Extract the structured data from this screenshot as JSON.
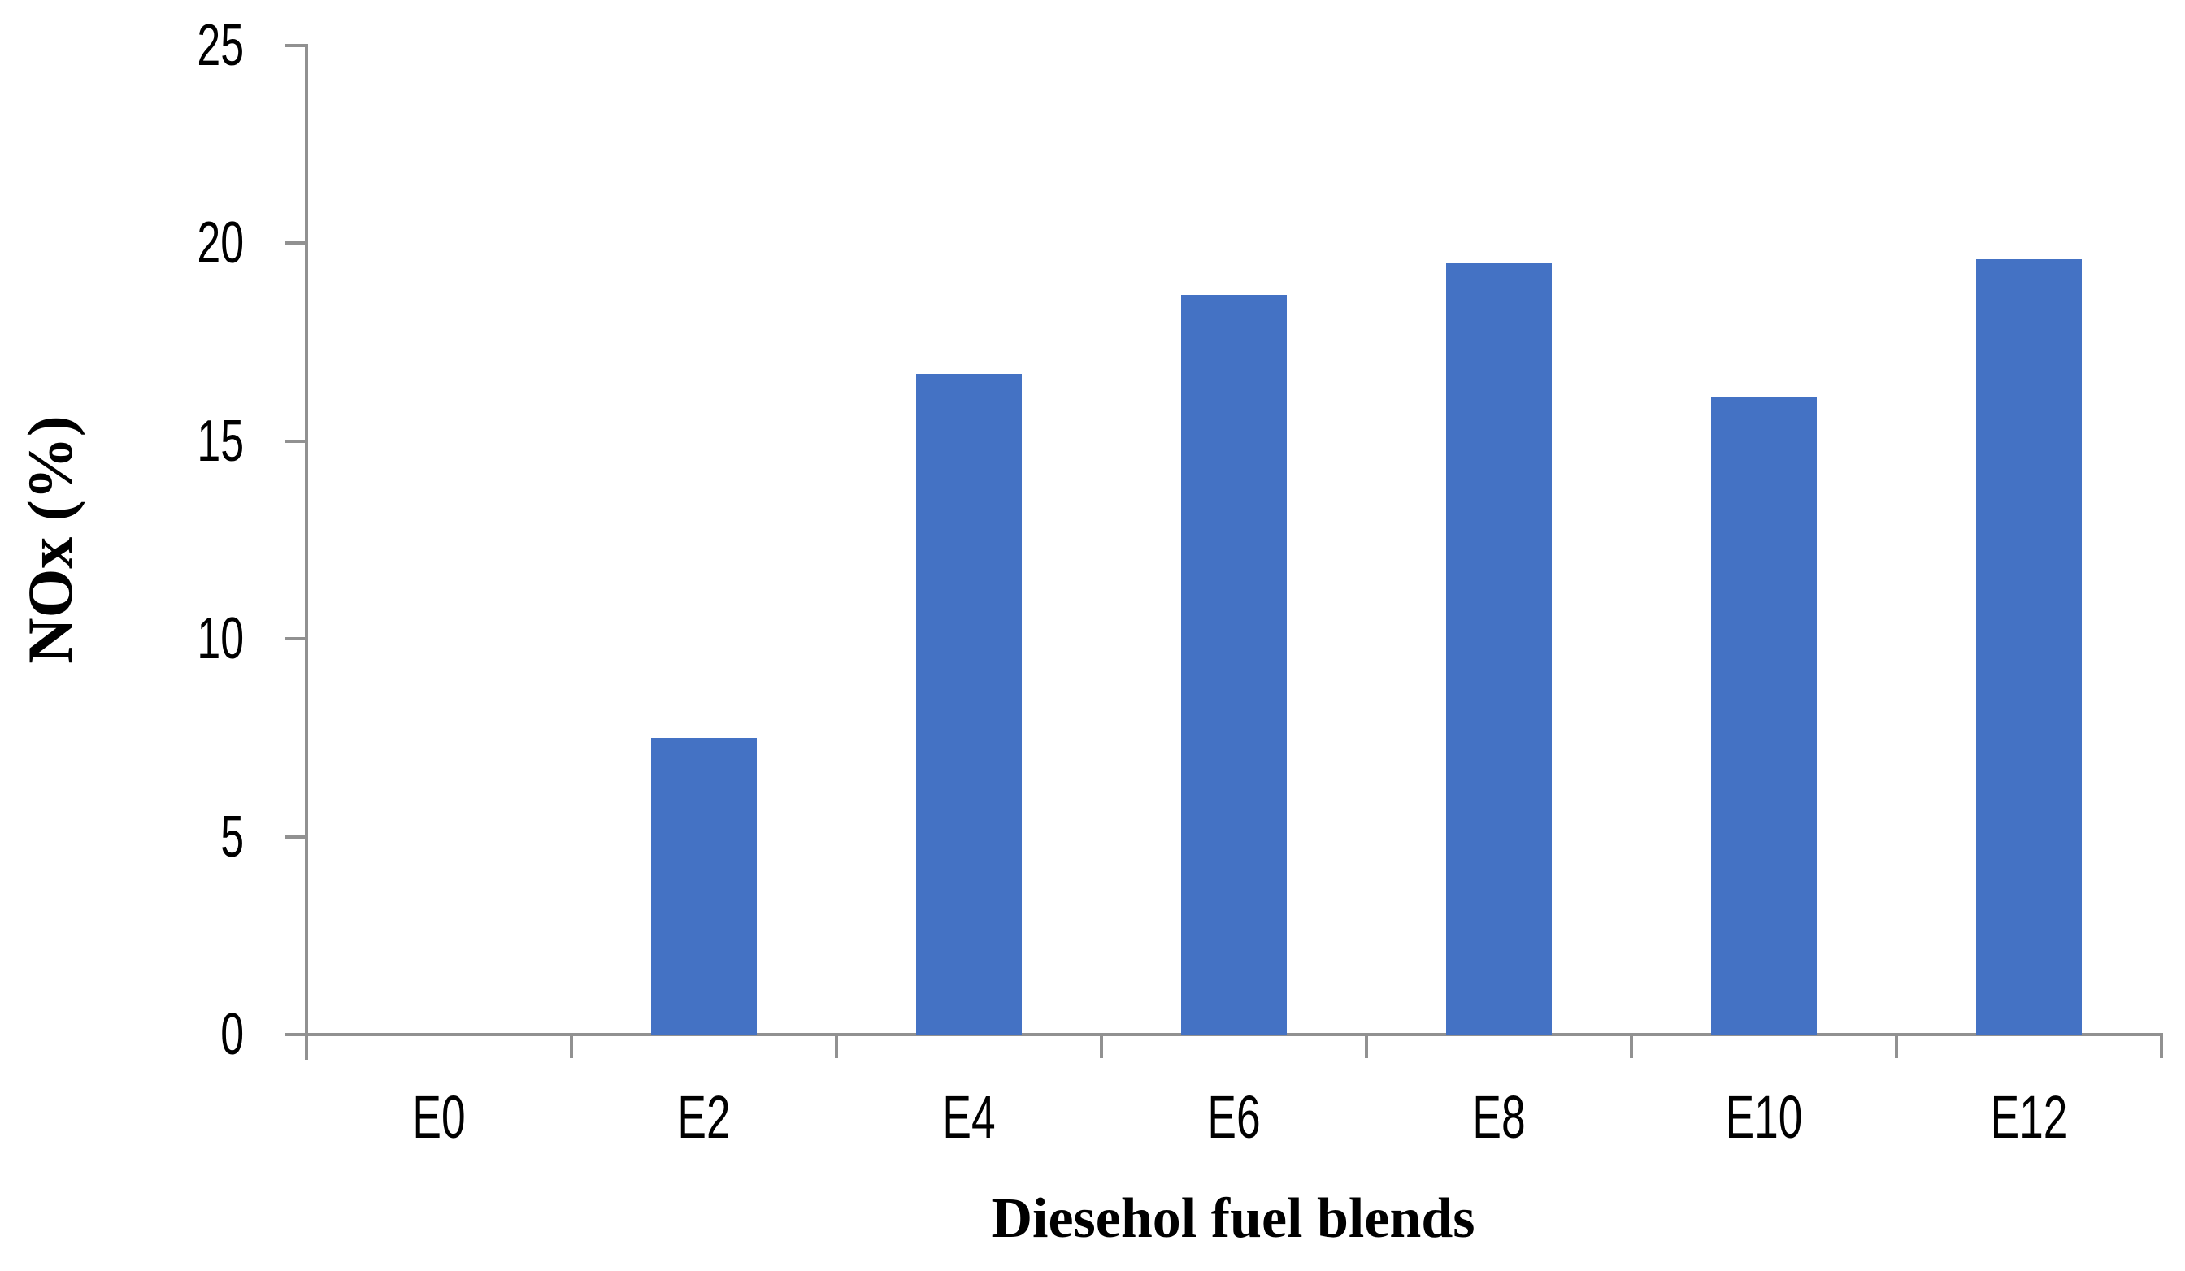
{
  "figure": {
    "background": "#ffffff"
  },
  "chart_data": {
    "type": "bar",
    "title": "",
    "xlabel": "Diesehol fuel blends",
    "ylabel": "NOx (%)",
    "categories": [
      "E0",
      "E2",
      "E4",
      "E6",
      "E8",
      "E10",
      "E12"
    ],
    "values": [
      0,
      7.5,
      16.7,
      18.7,
      19.5,
      16.1,
      19.6
    ],
    "ylim": [
      0,
      25
    ],
    "yticks": [
      0,
      5,
      10,
      15,
      20,
      25
    ],
    "grid": false,
    "legend": "none",
    "bar_color": "#4472C4",
    "axis_color": "#919191",
    "label_color": "#000000"
  }
}
